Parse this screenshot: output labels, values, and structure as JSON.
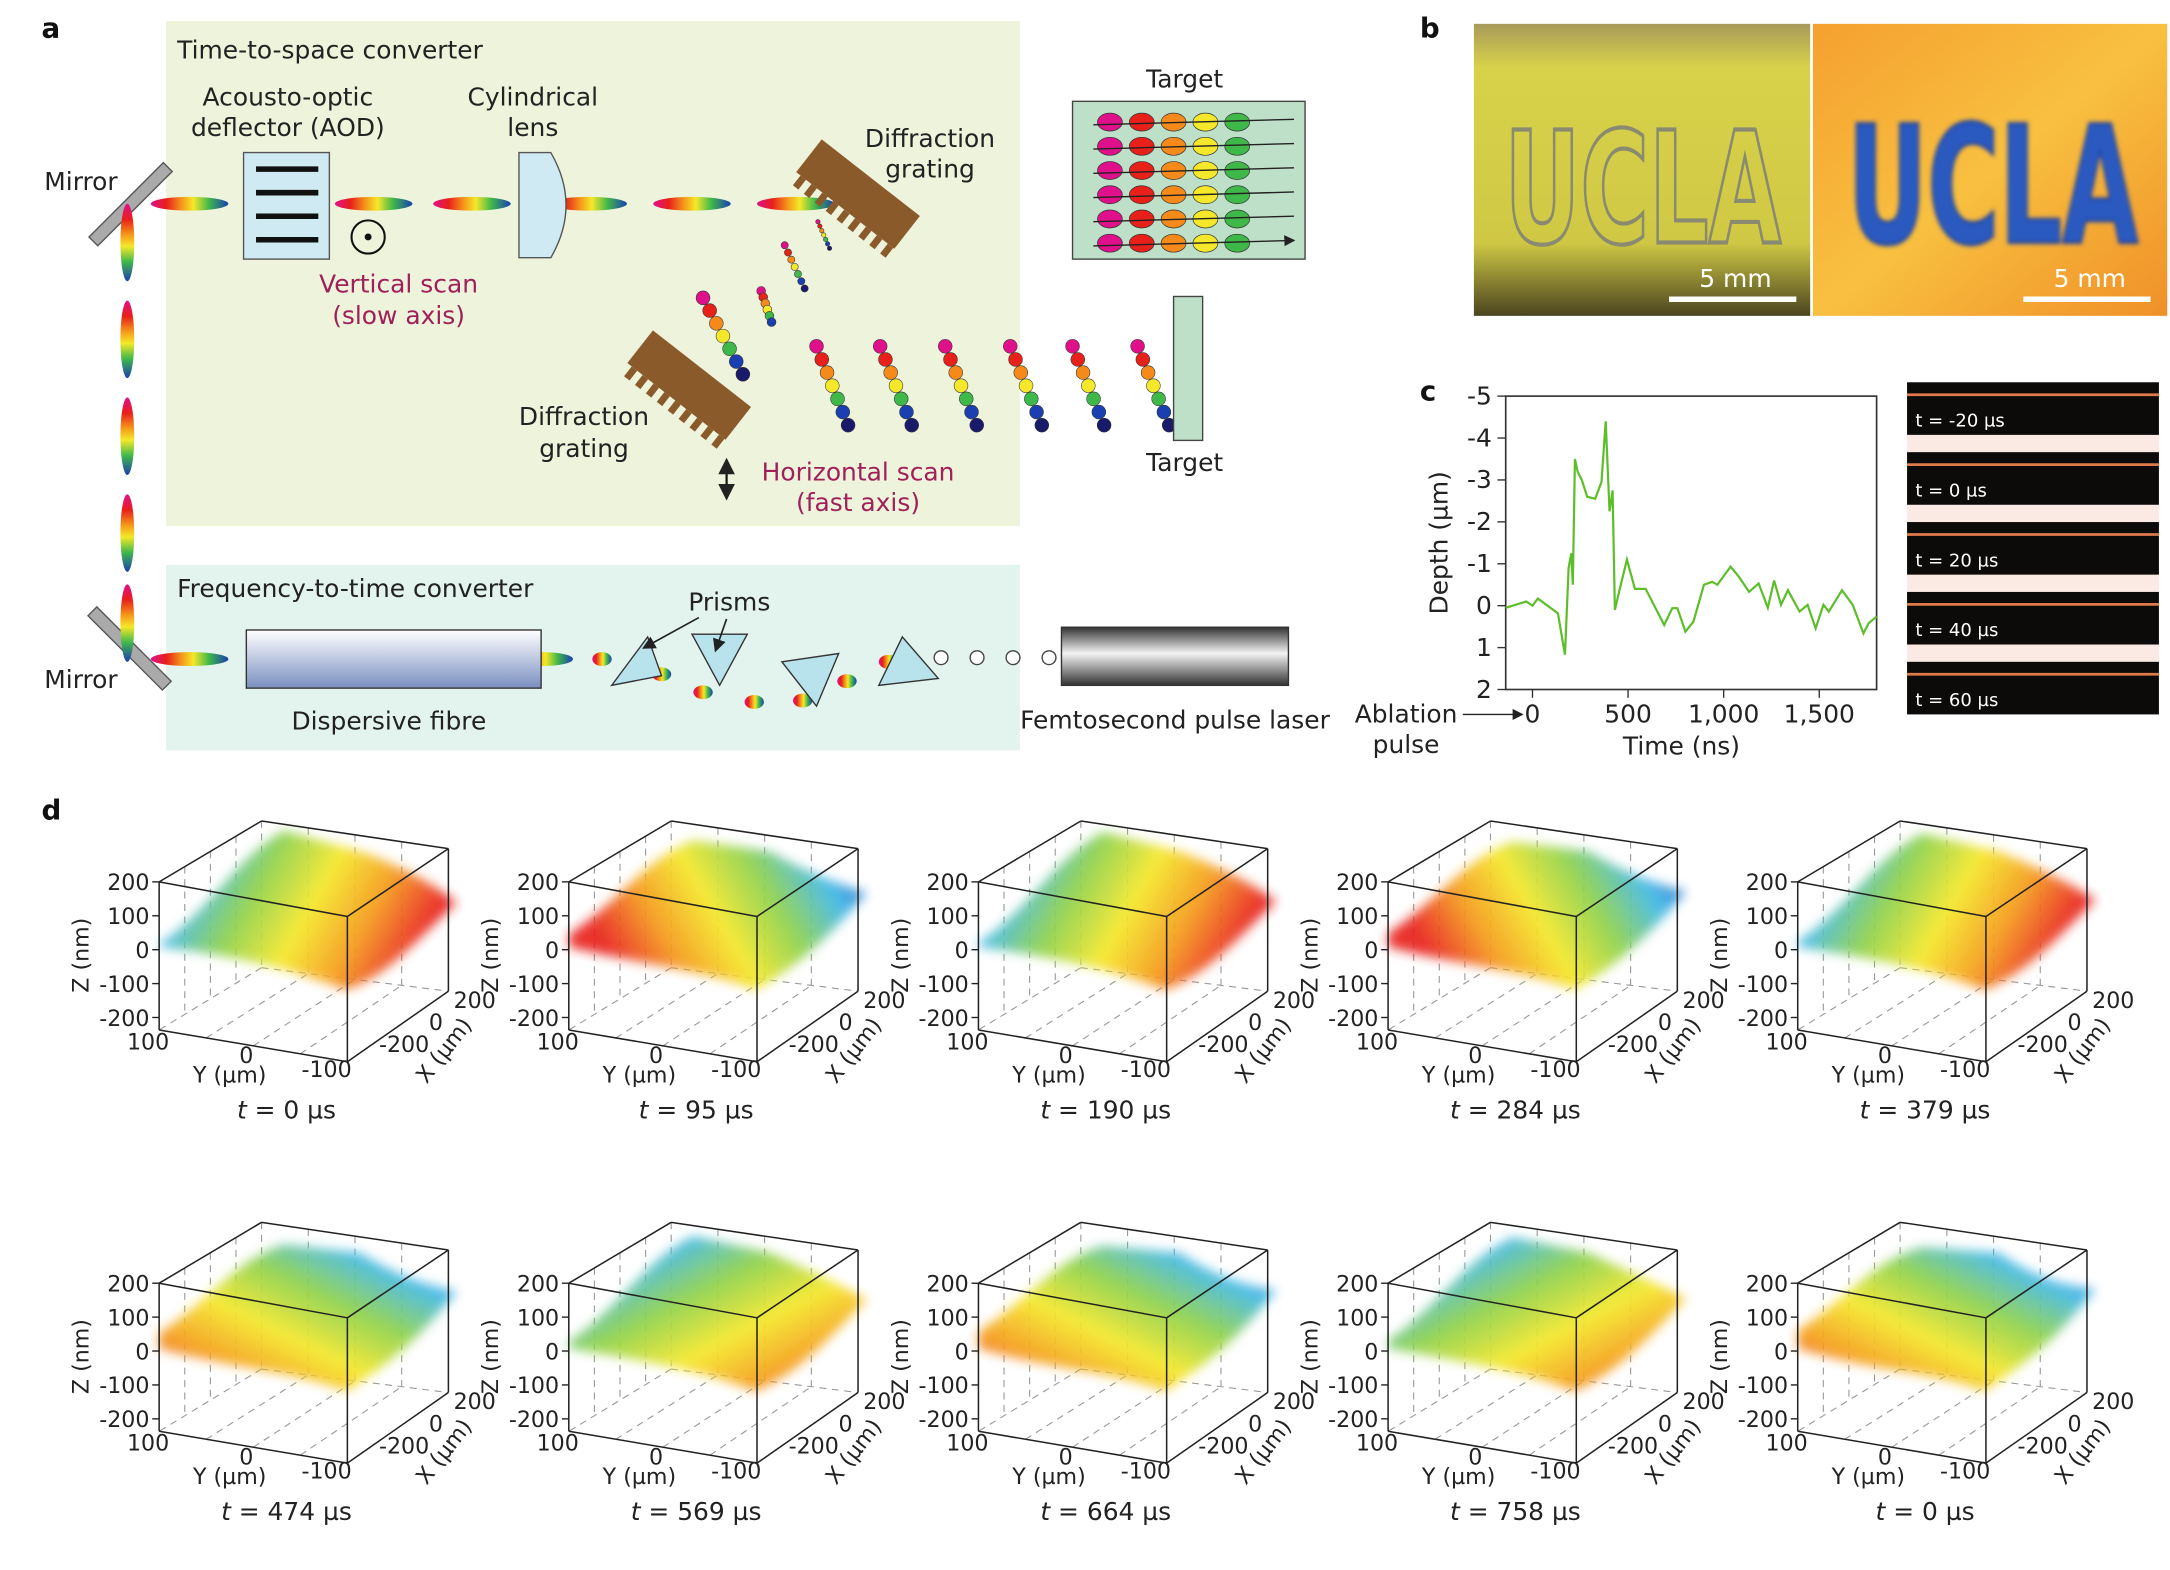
{
  "panel_letters": {
    "a": "a",
    "b": "b",
    "c": "c",
    "d": "d"
  },
  "panel_a": {
    "time_to_space_title": "Time-to-space converter",
    "freq_to_time_title": "Frequency-to-time converter",
    "mirror_top": "Mirror",
    "mirror_bottom": "Mirror",
    "aod_line1": "Acousto-optic",
    "aod_line2": "deflector (AOD)",
    "lens_line1": "Cylindrical",
    "lens_line2": "lens",
    "grating_top_line1": "Diffraction",
    "grating_top_line2": "grating",
    "grating_bottom_line1": "Diffraction",
    "grating_bottom_line2": "grating",
    "target_top": "Target",
    "target_right": "Target",
    "vertical_scan_line1": "Vertical scan",
    "vertical_scan_line2": "(slow axis)",
    "horizontal_scan_line1": "Horizontal scan",
    "horizontal_scan_line2": "(fast axis)",
    "prisms": "Prisms",
    "fibre": "Dispersive fibre",
    "laser": "Femtosecond pulse laser",
    "accent_color": "#a0205a",
    "spectrum_colors": [
      "#e0108a",
      "#e8201a",
      "#f58a1a",
      "#f5e82a",
      "#3fb84a",
      "#1a3fb0",
      "#1a1a6a"
    ]
  },
  "panel_b": {
    "photo_text": "UCLA",
    "scale_left": "5 mm",
    "scale_right": "5 mm"
  },
  "chart_data": {
    "type": "line",
    "title": "",
    "xlabel": "Time (ns)",
    "ylabel": "Depth (µm)",
    "xlim": [
      -140,
      1800
    ],
    "ylim": [
      -5,
      2
    ],
    "y_inverted": true,
    "grid": false,
    "x_ticks": [
      0,
      500,
      1000,
      1500
    ],
    "x_tick_labels": [
      "0",
      "500",
      "1,000",
      "1,500"
    ],
    "y_ticks": [
      -5,
      -4,
      -3,
      -2,
      -1,
      0,
      1,
      2
    ],
    "y_tick_labels": [
      "-5",
      "-4",
      "-3",
      "-2",
      "-1",
      "0",
      "1",
      "2"
    ],
    "annotation_line1": "Ablation",
    "annotation_line2": "pulse",
    "line_color": "#5cbf2a",
    "series": [
      {
        "x": [
          -140,
          -33,
          0,
          28,
          133,
          170,
          189,
          203,
          211,
          222,
          236,
          258,
          286,
          328,
          361,
          383,
          403,
          419,
          431,
          453,
          494,
          536,
          592,
          689,
          731,
          758,
          800,
          842,
          897,
          939,
          967,
          1036,
          1078,
          1133,
          1183,
          1231,
          1264,
          1300,
          1336,
          1397,
          1439,
          1481,
          1522,
          1550,
          1619,
          1675,
          1731,
          1758,
          1800
        ],
        "y": [
          0.05,
          -0.1,
          0,
          -0.17,
          0.18,
          1.17,
          -0.9,
          -1.25,
          -0.5,
          -3.5,
          -3.2,
          -3.0,
          -2.6,
          -2.55,
          -2.95,
          -4.4,
          -2.25,
          -2.75,
          0.1,
          -0.33,
          -1.1,
          -0.4,
          -0.4,
          0.46,
          0.06,
          0.06,
          0.62,
          0.38,
          -0.5,
          -0.57,
          -0.5,
          -0.93,
          -0.7,
          -0.33,
          -0.53,
          0.05,
          -0.6,
          -0.02,
          -0.37,
          0.14,
          -0.02,
          0.54,
          -0.02,
          0.14,
          -0.37,
          -0.02,
          0.66,
          0.42,
          0.26
        ]
      }
    ]
  },
  "panel_c_frames": [
    "t = -20 µs",
    "t = 0 µs",
    "t = 20 µs",
    "t = 40 µs",
    "t = 60 µs"
  ],
  "panel_d": {
    "z_label": "Z (nm)",
    "y_label": "Y (µm)",
    "x_label": "X (µm)",
    "z_ticks": [
      "200",
      "100",
      "0",
      "-100",
      "-200"
    ],
    "y_ticks": [
      "100",
      "0",
      "-100"
    ],
    "x_ticks": [
      "200",
      "0",
      "-200"
    ],
    "colormap": [
      "#1a3fb0",
      "#3fb8e8",
      "#8fd24a",
      "#f5e82a",
      "#f59a1a",
      "#e8201a"
    ],
    "plots": [
      {
        "time": "t = 0 µs"
      },
      {
        "time": "t = 95 µs"
      },
      {
        "time": "t = 190 µs"
      },
      {
        "time": "t = 284 µs"
      },
      {
        "time": "t = 379 µs"
      },
      {
        "time": "t = 474 µs"
      },
      {
        "time": "t = 569 µs"
      },
      {
        "time": "t = 664 µs"
      },
      {
        "time": "t = 758 µs"
      },
      {
        "time": "t = 0 µs"
      }
    ]
  }
}
